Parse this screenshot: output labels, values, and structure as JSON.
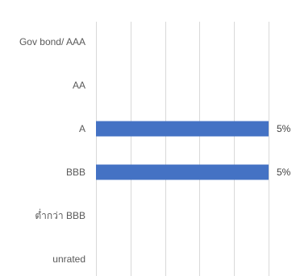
{
  "chart_data": {
    "type": "bar",
    "orientation": "horizontal",
    "categories": [
      "Gov bond/ AAA",
      "AA",
      "A",
      "BBB",
      "ต่ำกว่า BBB",
      "unrated"
    ],
    "values": [
      0,
      0,
      5,
      5,
      0,
      0
    ],
    "data_labels": [
      "",
      "",
      "5%",
      "5%",
      "",
      ""
    ],
    "title": "",
    "xlabel": "",
    "ylabel": "",
    "xlim": [
      0,
      5
    ],
    "x_gridlines": [
      0,
      1,
      2,
      3,
      4,
      5
    ],
    "x_tick_labels_shown": false,
    "grid": true,
    "legend": "none",
    "colors": {
      "bar": "#4472C4",
      "gridline": "#D9D9D9",
      "category_text": "#595959",
      "data_label_text": "#404040"
    }
  }
}
